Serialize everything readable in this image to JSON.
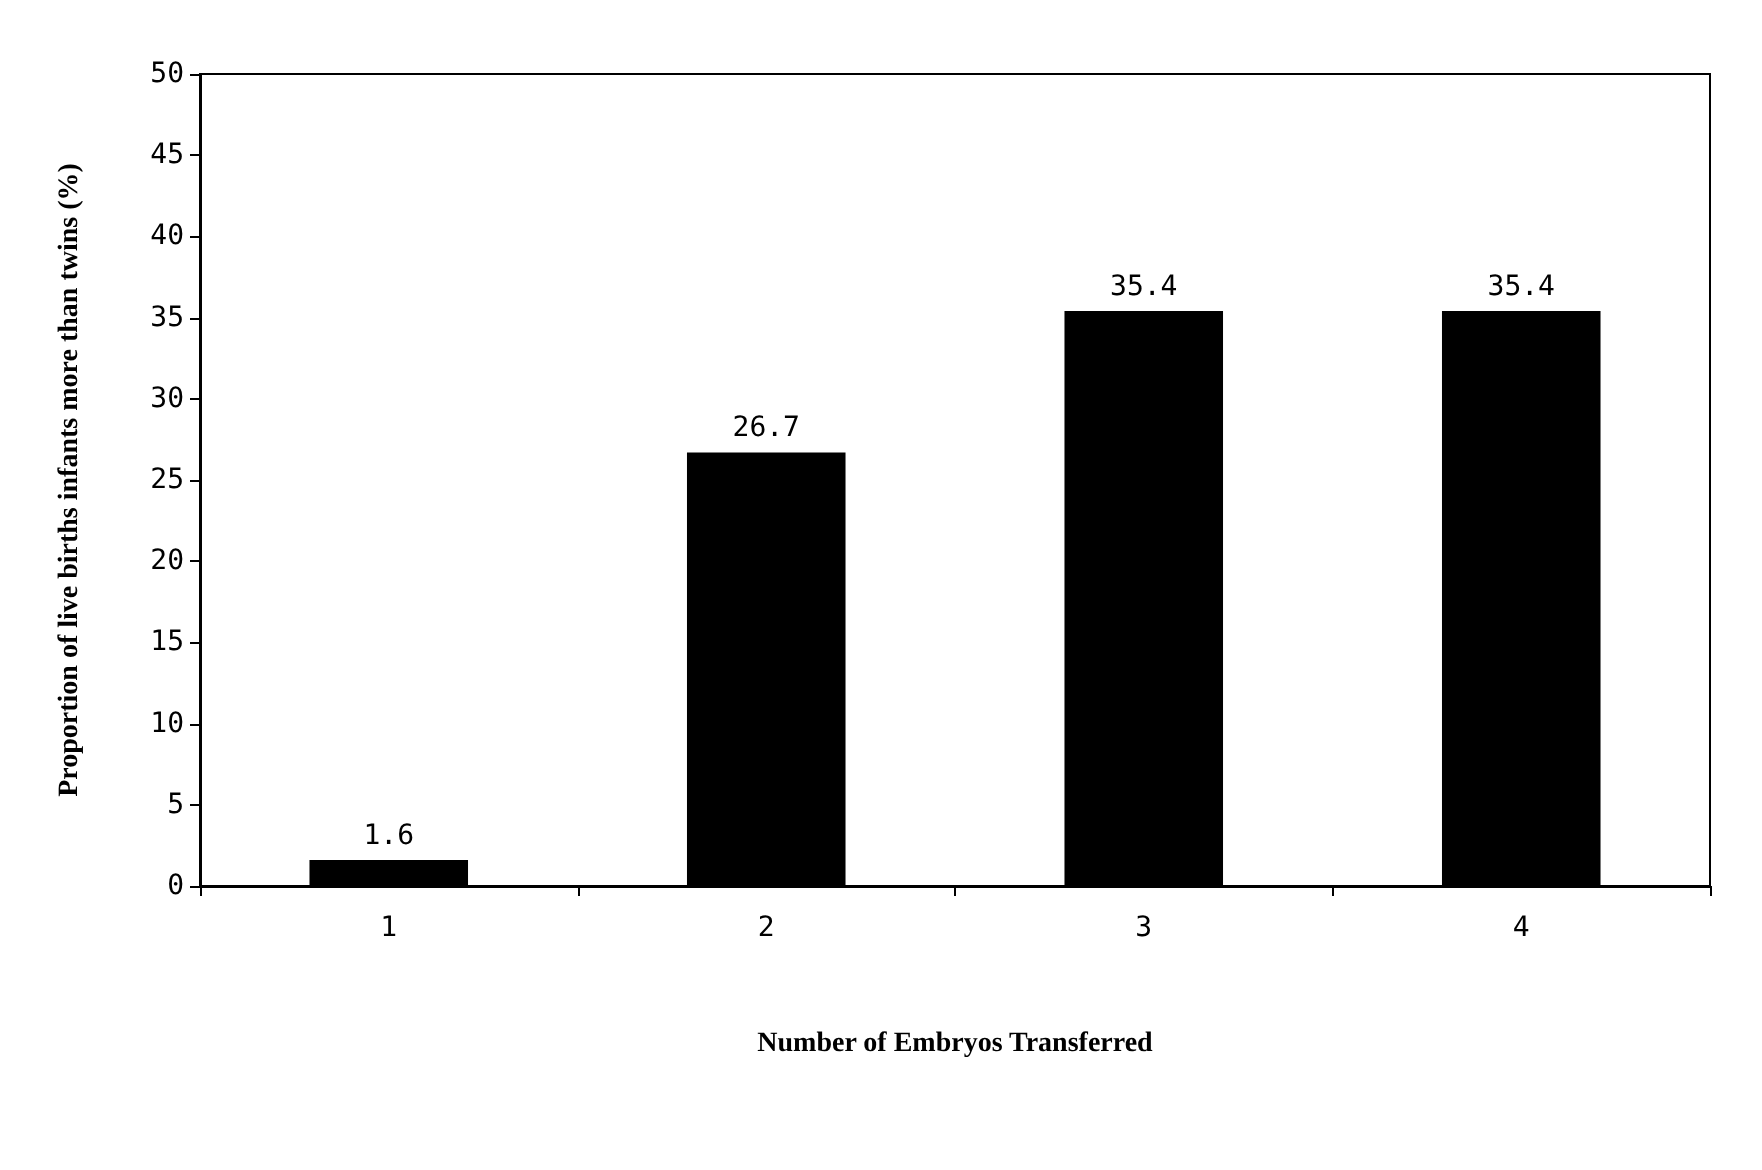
{
  "chart_data": {
    "type": "bar",
    "xlabel": "Number of Embryos Transferred",
    "ylabel": "Proportion of live births infants more than twins (%)",
    "categories": [
      "1",
      "2",
      "3",
      "4"
    ],
    "series": [
      {
        "color": "#000000",
        "values": [
          1.6,
          26.7,
          35.4,
          35.4
        ]
      }
    ],
    "ylim": [
      0,
      50
    ],
    "yticks": [
      0,
      5,
      10,
      15,
      20,
      25,
      30,
      35,
      40,
      45,
      50
    ],
    "data_labels": true
  }
}
